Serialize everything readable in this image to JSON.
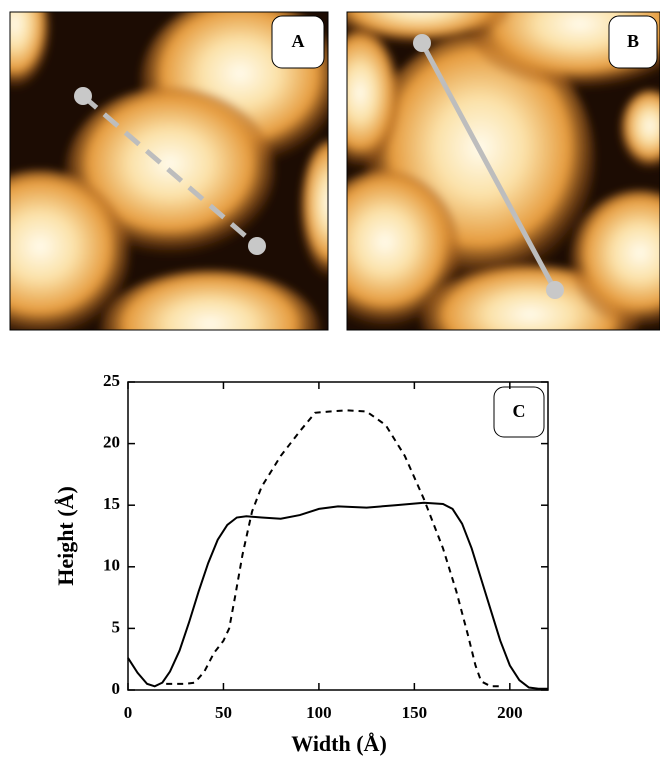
{
  "panels": [
    {
      "label": "A"
    },
    {
      "label": "B"
    }
  ],
  "chart_data": {
    "type": "line",
    "annotation": "C",
    "xlabel": "Width (Å)",
    "ylabel": "Height (Å)",
    "xlim": [
      0,
      220
    ],
    "xticks": [
      0,
      50,
      100,
      150,
      200
    ],
    "ylim": [
      0,
      25
    ],
    "yticks": [
      0,
      5,
      10,
      15,
      20,
      25
    ],
    "series": [
      {
        "color": "#000000",
        "style": "solid",
        "x": [
          0,
          5,
          10,
          14,
          18,
          22,
          27,
          32,
          37,
          42,
          47,
          52,
          57,
          62,
          70,
          80,
          90,
          100,
          110,
          125,
          140,
          155,
          165,
          170,
          175,
          180,
          185,
          190,
          195,
          200,
          205,
          210,
          215,
          220
        ],
        "values": [
          2.6,
          1.4,
          0.5,
          0.3,
          0.6,
          1.5,
          3.2,
          5.5,
          8,
          10.3,
          12.2,
          13.4,
          14,
          14.1,
          14,
          13.9,
          14.2,
          14.7,
          14.9,
          14.8,
          15,
          15.2,
          15.1,
          14.7,
          13.5,
          11.5,
          9,
          6.5,
          4,
          2,
          0.8,
          0.2,
          0.1,
          0.1
        ]
      },
      {
        "color": "#000000",
        "style": "dashed",
        "x": [
          20,
          30,
          35,
          40,
          45,
          50,
          53,
          56,
          60,
          65,
          70,
          80,
          90,
          98,
          105,
          115,
          125,
          135,
          145,
          155,
          165,
          172,
          178,
          182,
          185,
          190,
          195
        ],
        "values": [
          0.5,
          0.5,
          0.6,
          1.5,
          3,
          4,
          5,
          7.5,
          11,
          14.5,
          16.5,
          19,
          21,
          22.5,
          22.6,
          22.7,
          22.6,
          21.5,
          19,
          15.5,
          11.5,
          8,
          4.5,
          2,
          0.7,
          0.3,
          0.3
        ]
      }
    ]
  }
}
